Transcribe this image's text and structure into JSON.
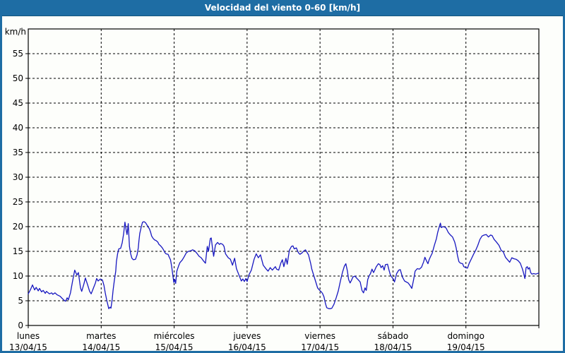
{
  "window": {
    "title": "Velocidad del viento 0-60 [km/h]"
  },
  "colors": {
    "titlebar": "#1e6da4",
    "window_border": "#1e6da4",
    "background": "#fdfefb",
    "axis": "#000000",
    "line": "#1717c0"
  },
  "chart_data": {
    "type": "line",
    "title": "Velocidad del viento 0-60 [km/h]",
    "ylabel": "km/h",
    "ylim": [
      0,
      60
    ],
    "ytick_step": 5,
    "ytick_labels": [
      "0",
      "5",
      "10",
      "15",
      "20",
      "25",
      "30",
      "35",
      "40",
      "45",
      "50",
      "55"
    ],
    "grid": "dashed",
    "legend": "none",
    "total_hours": 168,
    "hours_per_day": 24,
    "x_days": [
      {
        "weekday": "lunes",
        "date": "13/04/15"
      },
      {
        "weekday": "martes",
        "date": "14/04/15"
      },
      {
        "weekday": "miércoles",
        "date": "15/04/15"
      },
      {
        "weekday": "jueves",
        "date": "16/04/15"
      },
      {
        "weekday": "viernes",
        "date": "17/04/15"
      },
      {
        "weekday": "sábado",
        "date": "18/04/15"
      },
      {
        "weekday": "domingo",
        "date": "19/04/15"
      }
    ],
    "series": [
      {
        "name": "velocidad del viento",
        "unit": "km/h",
        "color": "#1717c0",
        "points": [
          [
            0,
            6.4
          ],
          [
            0.7,
            7.2
          ],
          [
            1.4,
            8.2
          ],
          [
            2.1,
            7.2
          ],
          [
            2.6,
            7.7
          ],
          [
            3.3,
            7.0
          ],
          [
            3.7,
            7.5
          ],
          [
            4.4,
            6.8
          ],
          [
            4.9,
            7.1
          ],
          [
            5.6,
            6.5
          ],
          [
            6.0,
            6.9
          ],
          [
            7.0,
            6.4
          ],
          [
            7.7,
            6.6
          ],
          [
            8.1,
            6.3
          ],
          [
            8.8,
            6.6
          ],
          [
            9.5,
            6.2
          ],
          [
            10.5,
            5.9
          ],
          [
            11.1,
            5.5
          ],
          [
            11.8,
            5.1
          ],
          [
            12.3,
            4.9
          ],
          [
            12.8,
            5.6
          ],
          [
            13.2,
            5.2
          ],
          [
            13.9,
            6.6
          ],
          [
            14.6,
            9.0
          ],
          [
            15.3,
            11.2
          ],
          [
            16.0,
            10.2
          ],
          [
            16.5,
            10.7
          ],
          [
            17.2,
            7.6
          ],
          [
            17.6,
            6.9
          ],
          [
            18.3,
            8.4
          ],
          [
            18.8,
            9.6
          ],
          [
            19.5,
            8.3
          ],
          [
            20.2,
            6.9
          ],
          [
            20.7,
            6.4
          ],
          [
            21.4,
            7.5
          ],
          [
            22.1,
            8.6
          ],
          [
            22.5,
            9.5
          ],
          [
            23.0,
            9.0
          ],
          [
            23.7,
            9.4
          ],
          [
            24.4,
            9.2
          ],
          [
            24.9,
            8.1
          ],
          [
            25.3,
            6.7
          ],
          [
            25.8,
            5.2
          ],
          [
            26.5,
            3.4
          ],
          [
            26.9,
            3.7
          ],
          [
            27.2,
            3.5
          ],
          [
            27.6,
            5.2
          ],
          [
            27.9,
            7.1
          ],
          [
            28.3,
            9.0
          ],
          [
            28.8,
            11.0
          ],
          [
            29.0,
            12.9
          ],
          [
            29.4,
            14.5
          ],
          [
            29.8,
            15.5
          ],
          [
            30.4,
            15.6
          ],
          [
            30.9,
            16.7
          ],
          [
            31.4,
            18.6
          ],
          [
            31.8,
            20.9
          ],
          [
            32.3,
            19.0
          ],
          [
            32.5,
            18.4
          ],
          [
            32.9,
            20.6
          ],
          [
            33.3,
            16.0
          ],
          [
            33.7,
            14.5
          ],
          [
            34.1,
            13.6
          ],
          [
            34.6,
            13.3
          ],
          [
            35.3,
            13.4
          ],
          [
            35.8,
            14.3
          ],
          [
            36.2,
            15.7
          ],
          [
            36.4,
            17.1
          ],
          [
            36.7,
            18.6
          ],
          [
            37.2,
            20.0
          ],
          [
            37.6,
            20.9
          ],
          [
            38.1,
            21.0
          ],
          [
            38.6,
            20.8
          ],
          [
            39.0,
            20.4
          ],
          [
            39.9,
            19.5
          ],
          [
            40.3,
            18.8
          ],
          [
            40.6,
            18.1
          ],
          [
            41.1,
            17.6
          ],
          [
            41.6,
            17.3
          ],
          [
            42.0,
            17.2
          ],
          [
            42.6,
            16.9
          ],
          [
            43.0,
            16.4
          ],
          [
            43.4,
            16.2
          ],
          [
            44.1,
            15.7
          ],
          [
            44.6,
            15.2
          ],
          [
            44.9,
            14.8
          ],
          [
            45.3,
            14.5
          ],
          [
            46.0,
            14.4
          ],
          [
            46.4,
            13.8
          ],
          [
            46.8,
            13.3
          ],
          [
            47.2,
            11.9
          ],
          [
            47.6,
            10.0
          ],
          [
            47.9,
            8.7
          ],
          [
            48.2,
            9.3
          ],
          [
            48.5,
            8.5
          ],
          [
            48.9,
            11.0
          ],
          [
            49.5,
            12.1
          ],
          [
            49.9,
            12.7
          ],
          [
            50.6,
            13.2
          ],
          [
            51.3,
            13.9
          ],
          [
            52.0,
            14.7
          ],
          [
            52.7,
            15.0
          ],
          [
            53.4,
            15.1
          ],
          [
            54.1,
            15.3
          ],
          [
            54.8,
            15.1
          ],
          [
            55.5,
            14.6
          ],
          [
            56.2,
            14.0
          ],
          [
            56.9,
            13.7
          ],
          [
            57.6,
            13.1
          ],
          [
            58.3,
            12.6
          ],
          [
            58.9,
            16.0
          ],
          [
            59.3,
            15.0
          ],
          [
            59.9,
            17.6
          ],
          [
            60.2,
            17.7
          ],
          [
            60.7,
            15.3
          ],
          [
            61.0,
            14.0
          ],
          [
            61.6,
            16.3
          ],
          [
            62.3,
            16.8
          ],
          [
            62.9,
            16.4
          ],
          [
            63.3,
            16.6
          ],
          [
            64.0,
            16.4
          ],
          [
            64.4,
            16.0
          ],
          [
            64.9,
            14.5
          ],
          [
            65.8,
            13.7
          ],
          [
            66.5,
            13.4
          ],
          [
            67.2,
            12.2
          ],
          [
            67.9,
            13.6
          ],
          [
            68.5,
            11.5
          ],
          [
            69.2,
            10.4
          ],
          [
            70.1,
            9.0
          ],
          [
            70.6,
            9.4
          ],
          [
            71.1,
            8.9
          ],
          [
            71.6,
            9.5
          ],
          [
            72.0,
            8.9
          ],
          [
            72.6,
            10.2
          ],
          [
            73.4,
            11.2
          ],
          [
            73.9,
            12.4
          ],
          [
            74.3,
            13.4
          ],
          [
            75.0,
            14.5
          ],
          [
            75.7,
            13.7
          ],
          [
            76.4,
            14.3
          ],
          [
            77.3,
            12.2
          ],
          [
            78.3,
            11.4
          ],
          [
            78.9,
            11.0
          ],
          [
            79.6,
            11.7
          ],
          [
            80.3,
            11.2
          ],
          [
            81.3,
            11.9
          ],
          [
            81.7,
            11.4
          ],
          [
            82.4,
            11.2
          ],
          [
            83.1,
            12.6
          ],
          [
            83.6,
            13.3
          ],
          [
            84.1,
            11.9
          ],
          [
            84.8,
            13.6
          ],
          [
            85.2,
            12.4
          ],
          [
            85.9,
            15.2
          ],
          [
            86.6,
            16.0
          ],
          [
            87.1,
            16.1
          ],
          [
            87.5,
            15.5
          ],
          [
            88.2,
            15.7
          ],
          [
            88.9,
            14.7
          ],
          [
            89.4,
            14.4
          ],
          [
            90.1,
            14.7
          ],
          [
            90.5,
            15.0
          ],
          [
            91.2,
            15.3
          ],
          [
            92.2,
            14.3
          ],
          [
            92.9,
            12.6
          ],
          [
            93.3,
            11.4
          ],
          [
            94.0,
            10.0
          ],
          [
            94.5,
            9.0
          ],
          [
            95.2,
            7.6
          ],
          [
            95.9,
            7.1
          ],
          [
            96.4,
            6.8
          ],
          [
            96.8,
            6.5
          ],
          [
            97.3,
            5.8
          ],
          [
            97.8,
            4.4
          ],
          [
            98.2,
            3.6
          ],
          [
            98.9,
            3.4
          ],
          [
            99.4,
            3.4
          ],
          [
            99.9,
            3.5
          ],
          [
            100.6,
            4.3
          ],
          [
            101.3,
            5.6
          ],
          [
            102.0,
            7.0
          ],
          [
            102.7,
            9.0
          ],
          [
            103.4,
            10.8
          ],
          [
            104.0,
            12.0
          ],
          [
            104.5,
            12.5
          ],
          [
            105.0,
            11.0
          ],
          [
            105.4,
            9.3
          ],
          [
            105.9,
            8.6
          ],
          [
            106.4,
            9.2
          ],
          [
            106.8,
            9.8
          ],
          [
            107.5,
            10.0
          ],
          [
            108.0,
            9.6
          ],
          [
            108.5,
            9.3
          ],
          [
            109.2,
            8.8
          ],
          [
            109.8,
            7.1
          ],
          [
            110.3,
            6.6
          ],
          [
            110.8,
            7.6
          ],
          [
            111.2,
            7.1
          ],
          [
            111.7,
            9.3
          ],
          [
            112.2,
            10.1
          ],
          [
            112.6,
            10.5
          ],
          [
            113.1,
            11.4
          ],
          [
            113.6,
            10.7
          ],
          [
            114.0,
            11.2
          ],
          [
            114.5,
            11.9
          ],
          [
            115.2,
            12.5
          ],
          [
            115.7,
            12.3
          ],
          [
            116.1,
            11.7
          ],
          [
            116.6,
            12.1
          ],
          [
            117.1,
            11.2
          ],
          [
            117.5,
            12.3
          ],
          [
            118.2,
            12.4
          ],
          [
            118.7,
            11.2
          ],
          [
            119.1,
            10.3
          ],
          [
            119.6,
            9.8
          ],
          [
            120.1,
            9.4
          ],
          [
            120.5,
            8.8
          ],
          [
            121.2,
            10.5
          ],
          [
            121.9,
            11.2
          ],
          [
            122.4,
            11.3
          ],
          [
            123.1,
            9.8
          ],
          [
            123.8,
            9.0
          ],
          [
            125.0,
            8.6
          ],
          [
            125.7,
            8.0
          ],
          [
            126.2,
            7.5
          ],
          [
            126.8,
            9.3
          ],
          [
            127.3,
            11.0
          ],
          [
            128.0,
            11.5
          ],
          [
            128.7,
            11.4
          ],
          [
            129.4,
            11.8
          ],
          [
            130.1,
            12.9
          ],
          [
            130.5,
            13.8
          ],
          [
            131.0,
            13.1
          ],
          [
            131.5,
            12.5
          ],
          [
            131.9,
            13.3
          ],
          [
            132.4,
            14.0
          ],
          [
            132.9,
            14.6
          ],
          [
            133.6,
            16.2
          ],
          [
            134.3,
            17.6
          ],
          [
            134.7,
            18.8
          ],
          [
            135.2,
            19.9
          ],
          [
            135.6,
            20.7
          ],
          [
            135.9,
            19.8
          ],
          [
            136.4,
            20.0
          ],
          [
            137.1,
            19.9
          ],
          [
            137.5,
            19.7
          ],
          [
            138.2,
            18.8
          ],
          [
            138.9,
            18.3
          ],
          [
            139.6,
            17.9
          ],
          [
            140.3,
            16.9
          ],
          [
            140.8,
            15.7
          ],
          [
            141.2,
            14.2
          ],
          [
            141.7,
            12.9
          ],
          [
            142.2,
            12.6
          ],
          [
            142.9,
            12.5
          ],
          [
            143.3,
            11.9
          ],
          [
            144.0,
            11.7
          ],
          [
            144.5,
            11.6
          ],
          [
            145.1,
            12.6
          ],
          [
            145.8,
            13.5
          ],
          [
            146.5,
            14.4
          ],
          [
            147.2,
            15.2
          ],
          [
            147.9,
            16.2
          ],
          [
            148.6,
            17.4
          ],
          [
            149.3,
            18.1
          ],
          [
            150.0,
            18.3
          ],
          [
            150.7,
            18.4
          ],
          [
            151.4,
            17.9
          ],
          [
            152.1,
            18.3
          ],
          [
            152.6,
            18.2
          ],
          [
            153.3,
            17.4
          ],
          [
            154.0,
            16.9
          ],
          [
            154.9,
            16.2
          ],
          [
            155.6,
            15.2
          ],
          [
            156.3,
            14.9
          ],
          [
            157.0,
            13.8
          ],
          [
            157.7,
            13.3
          ],
          [
            158.4,
            12.8
          ],
          [
            159.1,
            13.7
          ],
          [
            159.8,
            13.5
          ],
          [
            160.5,
            13.4
          ],
          [
            161.2,
            13.1
          ],
          [
            161.9,
            12.6
          ],
          [
            162.6,
            11.4
          ],
          [
            163.0,
            10.5
          ],
          [
            163.4,
            9.5
          ],
          [
            163.8,
            11.7
          ],
          [
            164.2,
            11.9
          ],
          [
            164.5,
            11.4
          ],
          [
            164.9,
            11.7
          ],
          [
            165.3,
            10.7
          ],
          [
            165.7,
            10.4
          ],
          [
            166.3,
            10.5
          ],
          [
            167.0,
            10.4
          ],
          [
            167.9,
            10.6
          ]
        ]
      }
    ]
  }
}
